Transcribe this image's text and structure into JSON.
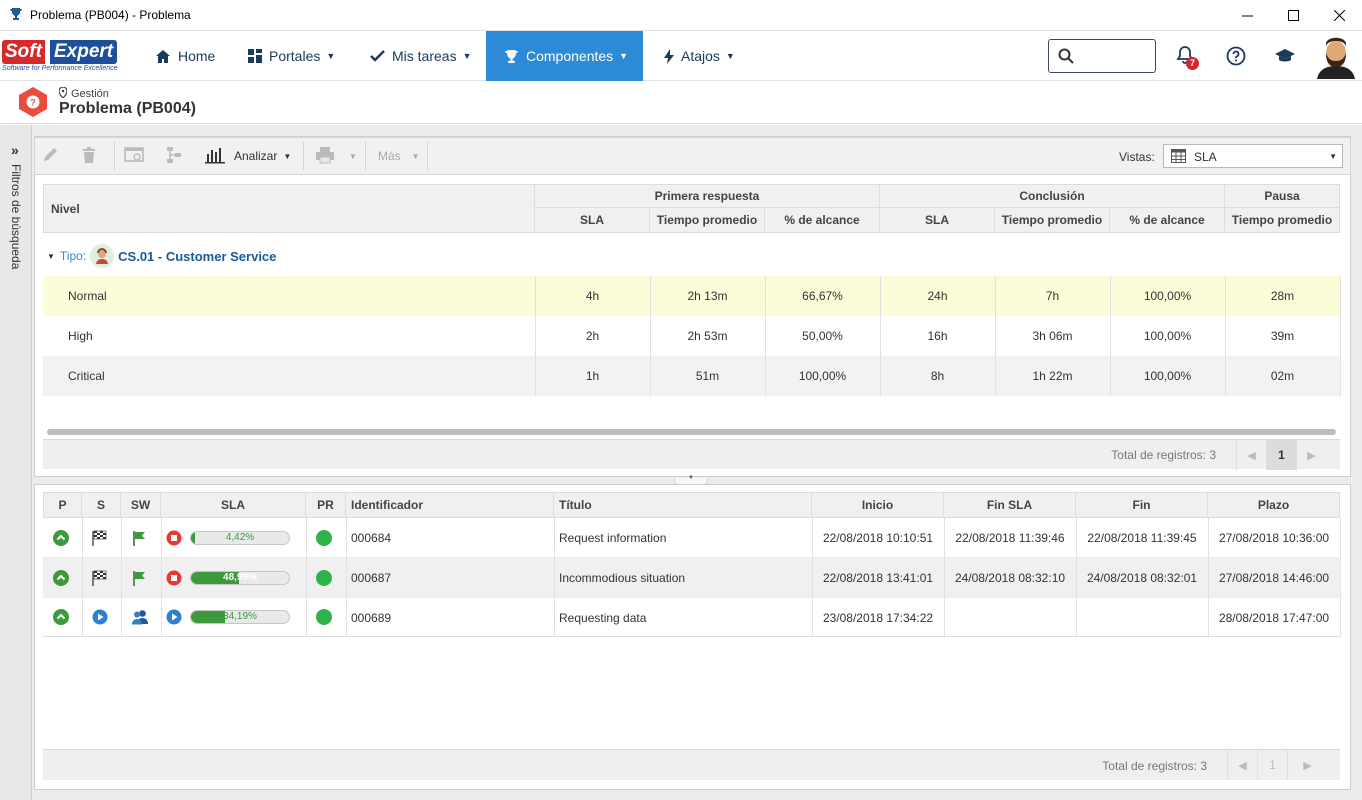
{
  "window": {
    "title": "Problema (PB004) - Problema"
  },
  "brand": {
    "logo_text_1": "Soft",
    "logo_text_2": "Expert",
    "tagline": "Software for Performance Excellence",
    "accent": "#2d8ad6"
  },
  "nav": {
    "items": [
      {
        "label": "Home",
        "icon": "home-icon"
      },
      {
        "label": "Portales",
        "icon": "grid-icon"
      },
      {
        "label": "Mis tareas",
        "icon": "check-icon"
      },
      {
        "label": "Componentes",
        "icon": "trophy-icon"
      },
      {
        "label": "Atajos",
        "icon": "bolt-icon"
      }
    ],
    "search_placeholder": "",
    "notifications_count": "7"
  },
  "page": {
    "breadcrumb": "Gestión",
    "title": "Problema (PB004)"
  },
  "sidebar": {
    "label": "Filtros de búsqueda"
  },
  "toolbar": {
    "analyze_label": "Analizar",
    "more_label": "Más",
    "views_label": "Vistas:",
    "views_value": "SLA"
  },
  "sla_grid": {
    "col_level": "Nivel",
    "group_first": "Primera respuesta",
    "group_conclusion": "Conclusión",
    "group_pause": "Pausa",
    "sub_sla": "SLA",
    "sub_avg": "Tiempo promedio",
    "sub_reach": "% de alcance",
    "type_label": "Tipo:",
    "type_value": "CS.01 - Customer Service",
    "rows": [
      {
        "level": "Normal",
        "fr_sla": "4h",
        "fr_avg": "2h 13m",
        "fr_reach": "66,67%",
        "c_sla": "24h",
        "c_avg": "7h",
        "c_reach": "100,00%",
        "p_avg": "28m"
      },
      {
        "level": "High",
        "fr_sla": "2h",
        "fr_avg": "2h 53m",
        "fr_reach": "50,00%",
        "c_sla": "16h",
        "c_avg": "3h 06m",
        "c_reach": "100,00%",
        "p_avg": "39m"
      },
      {
        "level": "Critical",
        "fr_sla": "1h",
        "fr_avg": "51m",
        "fr_reach": "100,00%",
        "c_sla": "8h",
        "c_avg": "1h 22m",
        "c_reach": "100,00%",
        "p_avg": "02m"
      }
    ],
    "total_label": "Total de registros: 3",
    "page": "1"
  },
  "records": {
    "headers": {
      "p": "P",
      "s": "S",
      "sw": "SW",
      "sla": "SLA",
      "pr": "PR",
      "id": "Identificador",
      "title": "Título",
      "start": "Inicio",
      "fin_sla": "Fin SLA",
      "fin": "Fin",
      "plazo": "Plazo"
    },
    "rows": [
      {
        "sla_pct": "4,42%",
        "sla_fill": 0.0442,
        "s_icon": "checkered-flag-icon",
        "sw_icon": "green-flag-icon",
        "sla_icon": "stop-icon",
        "id": "000684",
        "title": "Request information",
        "start": "22/08/2018 10:10:51",
        "fin_sla": "22/08/2018 11:39:46",
        "fin": "22/08/2018 11:39:45",
        "plazo": "27/08/2018 10:36:00"
      },
      {
        "sla_pct": "48,99%",
        "sla_fill": 0.4899,
        "s_icon": "checkered-flag-icon",
        "sw_icon": "green-flag-icon",
        "sla_icon": "stop-icon",
        "id": "000687",
        "title": "Incommodious situation",
        "start": "22/08/2018 13:41:01",
        "fin_sla": "24/08/2018 08:32:10",
        "fin": "24/08/2018 08:32:01",
        "plazo": "27/08/2018 14:46:00"
      },
      {
        "sla_pct": "34,19%",
        "sla_fill": 0.3419,
        "s_icon": "play-icon",
        "sw_icon": "users-icon",
        "sla_icon": "play-icon",
        "id": "000689",
        "title": "Requesting data",
        "start": "23/08/2018 17:34:22",
        "fin_sla": "",
        "fin": "",
        "plazo": "28/08/2018 17:47:00"
      }
    ],
    "total_label": "Total de registros: 3",
    "page": "1"
  }
}
